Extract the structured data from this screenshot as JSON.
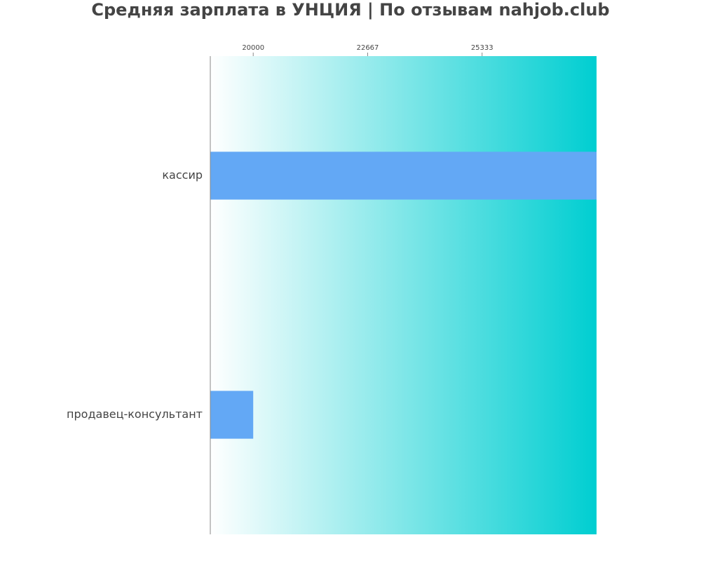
{
  "chart_data": {
    "type": "barh",
    "title": "Средняя зарплата в УНЦИЯ | По отзывам nahjob.club",
    "categories": [
      "кассир",
      "продавец-консультант"
    ],
    "values": [
      28000,
      20000
    ],
    "color": "#63a8f5",
    "background_gradient": [
      "#ffffff",
      "#00ced1"
    ],
    "xlim": [
      19000,
      28000
    ],
    "xticks": [
      20000,
      22667,
      25333
    ]
  }
}
